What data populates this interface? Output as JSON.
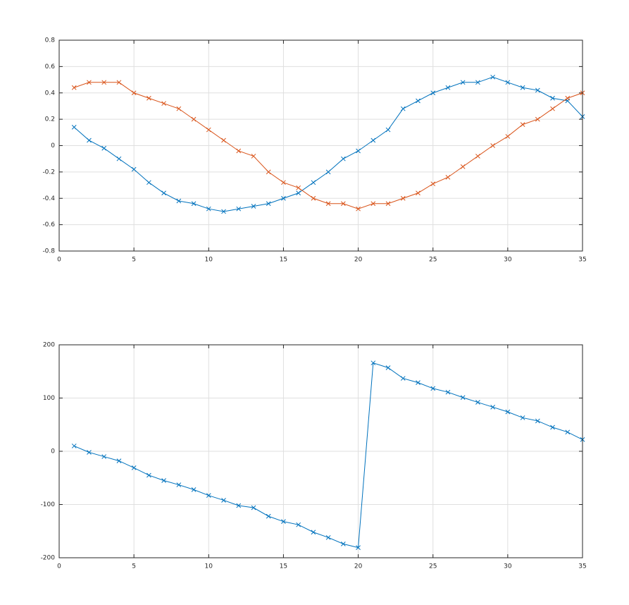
{
  "chart_data": [
    {
      "type": "line",
      "x": [
        1,
        2,
        3,
        4,
        5,
        6,
        7,
        8,
        9,
        10,
        11,
        12,
        13,
        14,
        15,
        16,
        17,
        18,
        19,
        20,
        21,
        22,
        23,
        24,
        25,
        26,
        27,
        28,
        29,
        30,
        31,
        32,
        33,
        34,
        35
      ],
      "series": [
        {
          "color": "#0072bd",
          "values": [
            0.14,
            0.04,
            -0.02,
            -0.1,
            -0.18,
            -0.28,
            -0.36,
            -0.42,
            -0.44,
            -0.48,
            -0.5,
            -0.48,
            -0.46,
            -0.44,
            -0.4,
            -0.36,
            -0.28,
            -0.2,
            -0.1,
            -0.04,
            0.04,
            0.12,
            0.28,
            0.34,
            0.4,
            0.44,
            0.48,
            0.48,
            0.52,
            0.48,
            0.44,
            0.42,
            0.36,
            0.34,
            0.22
          ]
        },
        {
          "color": "#d95319",
          "values": [
            0.44,
            0.48,
            0.48,
            0.48,
            0.4,
            0.36,
            0.32,
            0.28,
            0.2,
            0.12,
            0.04,
            -0.04,
            -0.08,
            -0.2,
            -0.28,
            -0.32,
            -0.4,
            -0.44,
            -0.44,
            -0.48,
            -0.44,
            -0.44,
            -0.4,
            -0.36,
            -0.29,
            -0.24,
            -0.16,
            -0.08,
            0.0,
            0.07,
            0.16,
            0.2,
            0.28,
            0.36,
            0.4
          ]
        }
      ],
      "xlim": [
        0,
        35
      ],
      "xticks": [
        0,
        5,
        10,
        15,
        20,
        25,
        30,
        35
      ],
      "ylim": [
        -0.8,
        0.8
      ],
      "yticks": [
        -0.8,
        -0.6,
        -0.4,
        -0.2,
        0,
        0.2,
        0.4,
        0.6,
        0.8
      ],
      "grid": true,
      "marker": "x"
    },
    {
      "type": "line",
      "x": [
        1,
        2,
        3,
        4,
        5,
        6,
        7,
        8,
        9,
        10,
        11,
        12,
        13,
        14,
        15,
        16,
        17,
        18,
        19,
        20,
        21,
        22,
        23,
        24,
        25,
        26,
        27,
        28,
        29,
        30,
        31,
        32,
        33,
        34,
        35
      ],
      "series": [
        {
          "color": "#0072bd",
          "values": [
            10,
            -2,
            -10,
            -18,
            -31,
            -45,
            -55,
            -63,
            -72,
            -83,
            -92,
            -102,
            -106,
            -122,
            -132,
            -138,
            -152,
            -162,
            -174,
            -181,
            166,
            157,
            137,
            129,
            118,
            111,
            101,
            92,
            83,
            74,
            63,
            57,
            45,
            36,
            22
          ]
        }
      ],
      "xlim": [
        0,
        35
      ],
      "xticks": [
        0,
        5,
        10,
        15,
        20,
        25,
        30,
        35
      ],
      "ylim": [
        -200,
        200
      ],
      "yticks": [
        -200,
        -100,
        0,
        100,
        200
      ],
      "grid": true,
      "marker": "x"
    }
  ]
}
